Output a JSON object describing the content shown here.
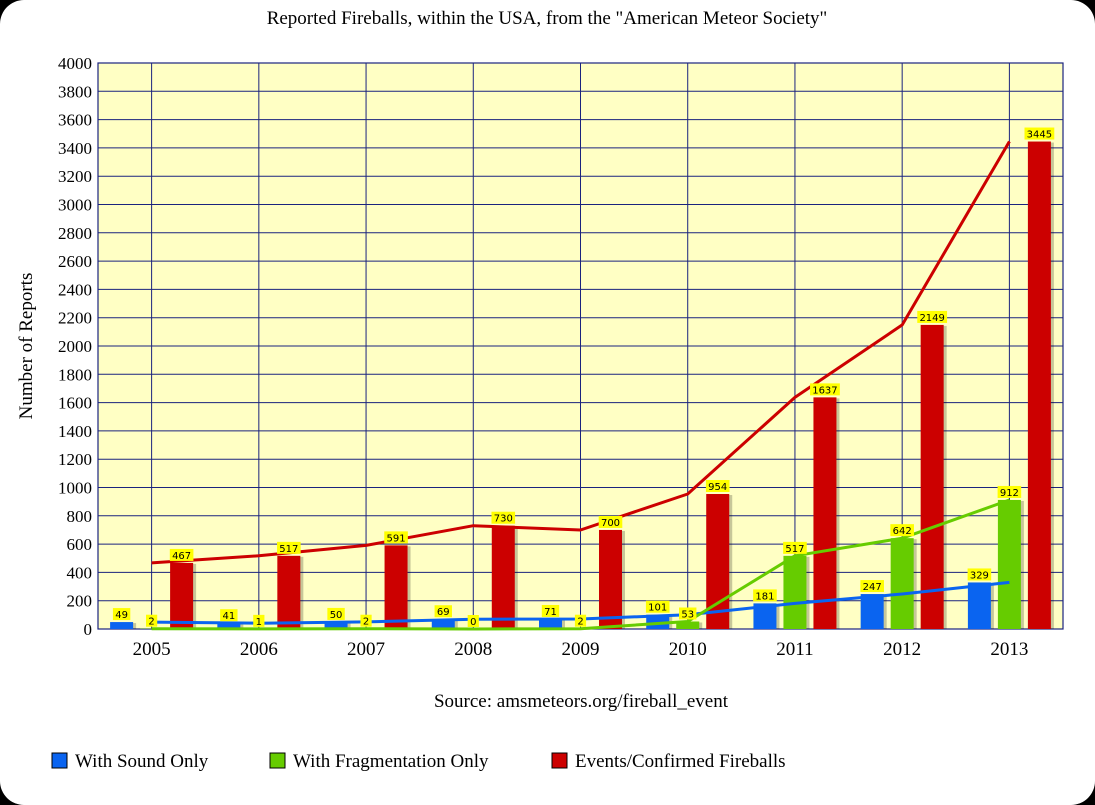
{
  "chart_data": {
    "type": "bar",
    "title": "Reported Fireballs, within the USA, from the \"American Meteor Society\"",
    "ylabel": "Number of Reports",
    "xlabel": "",
    "source": "Source: amsmeteors.org/fireball_event",
    "categories": [
      "2005",
      "2006",
      "2007",
      "2008",
      "2009",
      "2010",
      "2011",
      "2012",
      "2013"
    ],
    "ylim": [
      0,
      4000
    ],
    "yticks": [
      0,
      200,
      400,
      600,
      800,
      1000,
      1200,
      1400,
      1600,
      1800,
      2000,
      2200,
      2400,
      2600,
      2800,
      3000,
      3200,
      3400,
      3600,
      3800,
      4000
    ],
    "grid": true,
    "legend_position": "bottom",
    "series": [
      {
        "name": "With Sound Only",
        "color": "#0a64f0",
        "values": [
          49,
          41,
          50,
          69,
          71,
          101,
          181,
          247,
          329
        ]
      },
      {
        "name": "With Fragmentation Only",
        "color": "#66cc00",
        "values": [
          2,
          1,
          2,
          0,
          2,
          53,
          517,
          642,
          912
        ]
      },
      {
        "name": "Events/Confirmed Fireballs",
        "color": "#cc0000",
        "values": [
          467,
          517,
          591,
          730,
          700,
          954,
          1637,
          2149,
          3445
        ]
      }
    ],
    "plot_background": "#ffffc4",
    "grid_color": "#1a237e",
    "label_background": "#ffff00"
  }
}
